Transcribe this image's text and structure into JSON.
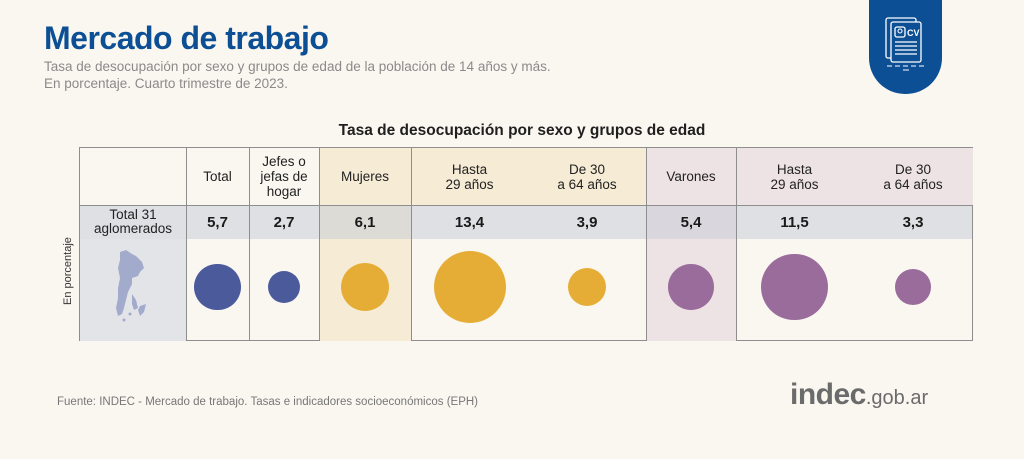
{
  "header": {
    "title": "Mercado de trabajo",
    "subtitle_line1": "Tasa de desocupación por sexo y grupos de edad de la población de 14 años y más.",
    "subtitle_line2": "En porcentaje. Cuarto trimestre de 2023.",
    "badge_icon": "cv-document-icon",
    "badge_text": "CV"
  },
  "chart_data": {
    "type": "table",
    "title": "Tasa de desocupación por sexo y grupos de edad",
    "ylabel": "En porcentaje",
    "row_label": "Total 31\naglomerados",
    "columns": [
      {
        "label": "Total",
        "value": 5.7,
        "display": "5,7",
        "group": "total",
        "color": "#4a5a9b"
      },
      {
        "label": "Jefes o\njefas de\nhogar",
        "value": 2.7,
        "display": "2,7",
        "group": "total",
        "color": "#4a5a9b"
      },
      {
        "label": "Mujeres",
        "value": 6.1,
        "display": "6,1",
        "group": "mujeres",
        "color": "#e5ad35"
      },
      {
        "label": "Hasta\n29 años",
        "value": 13.4,
        "display": "13,4",
        "group": "mujeres",
        "color": "#e5ad35"
      },
      {
        "label": "De 30\na 64 años",
        "value": 3.9,
        "display": "3,9",
        "group": "mujeres",
        "color": "#e5ad35"
      },
      {
        "label": "Varones",
        "value": 5.4,
        "display": "5,4",
        "group": "varones",
        "color": "#9a6c9c"
      },
      {
        "label": "Hasta\n29 años",
        "value": 11.5,
        "display": "11,5",
        "group": "varones",
        "color": "#9a6c9c"
      },
      {
        "label": "De 30\na 64 años",
        "value": 3.3,
        "display": "3,3",
        "group": "varones",
        "color": "#9a6c9c"
      }
    ],
    "colors": {
      "total": "#4a5a9b",
      "mujeres": "#e5ad35",
      "varones": "#9a6c9c",
      "map": "#a3abcc"
    }
  },
  "footer": {
    "source": "Fuente: INDEC - Mercado de trabajo. Tasas e indicadores socioeconómicos (EPH)",
    "logo_main": "indec",
    "logo_suffix": ".gob.ar"
  }
}
